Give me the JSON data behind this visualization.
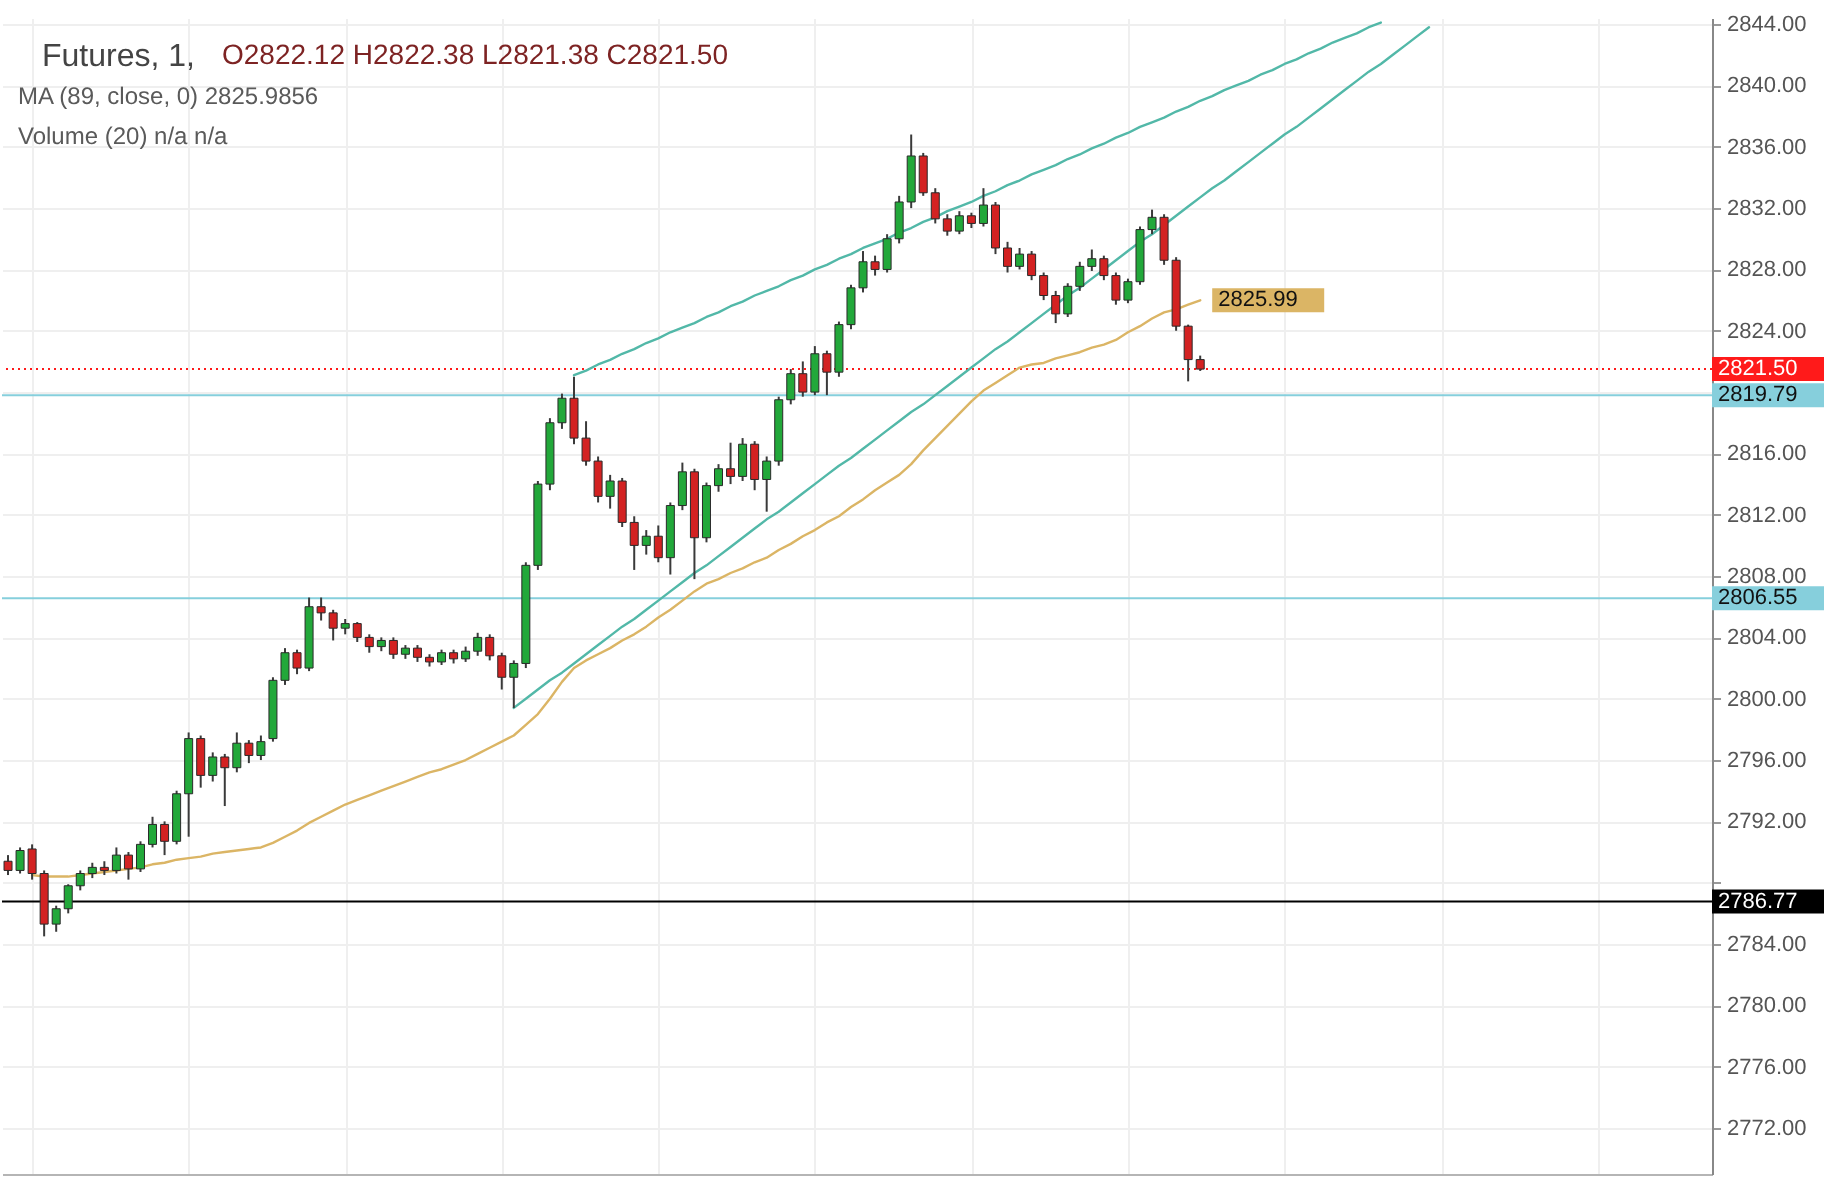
{
  "chart_data": {
    "type": "candlestick",
    "title": "Futures, 1,",
    "annotations": [
      "O2822.12 H2822.38 L2821.38 C2821.50",
      "MA (89, close, 0) 2825.9856",
      "Volume (20) n/a n/a"
    ],
    "categories": [
      null,
      null,
      null,
      null,
      null,
      null,
      null,
      null,
      null,
      null,
      null,
      null,
      null,
      null,
      null,
      null,
      null,
      null,
      null,
      null,
      null,
      null,
      null,
      null,
      null,
      null,
      null,
      null,
      null,
      null,
      null,
      null,
      null,
      null,
      null,
      null,
      null,
      null,
      null,
      null,
      null,
      null,
      null,
      null,
      null,
      null,
      null,
      null,
      null,
      null,
      null,
      null,
      null,
      null,
      null,
      null,
      null,
      null,
      null,
      null,
      null,
      null,
      null,
      null,
      null,
      null,
      null,
      null,
      null,
      null,
      null,
      null,
      null,
      null,
      null,
      null,
      null,
      null,
      null,
      null,
      null,
      null,
      null,
      null,
      null,
      null,
      null,
      null,
      null,
      null,
      null,
      null,
      null,
      null,
      null,
      null,
      null,
      null,
      null,
      null,
      null,
      null,
      null,
      null,
      null,
      null,
      null,
      null,
      null,
      null,
      null,
      null,
      null,
      null,
      null,
      null,
      null,
      null,
      null,
      null,
      null,
      null,
      null,
      null,
      null,
      null,
      null,
      null,
      null,
      null,
      null,
      null,
      null,
      null,
      null,
      null,
      null,
      null,
      null,
      null,
      null,
      null
    ],
    "ylim": [
      2769,
      2844.4
    ],
    "yticks": [
      {
        "value": 2772,
        "label": "2772.00"
      },
      {
        "value": 2776,
        "label": "2776.00"
      },
      {
        "value": 2780,
        "label": "2780.00"
      },
      {
        "value": 2784,
        "label": "2784.00"
      },
      {
        "value": 2788,
        "label": null
      },
      {
        "value": 2792,
        "label": "2792.00"
      },
      {
        "value": 2796,
        "label": "2796.00"
      },
      {
        "value": 2800,
        "label": "2800.00"
      },
      {
        "value": 2804,
        "label": "2804.00"
      },
      {
        "value": 2808,
        "label": "2808.00"
      },
      {
        "value": 2812,
        "label": "2812.00"
      },
      {
        "value": 2816,
        "label": "2816.00"
      },
      {
        "value": 2820,
        "label": null
      },
      {
        "value": 2824,
        "label": "2824.00"
      },
      {
        "value": 2828,
        "label": "2828.00"
      },
      {
        "value": 2832,
        "label": "2832.00"
      },
      {
        "value": 2836,
        "label": "2836.00"
      },
      {
        "value": 2840,
        "label": "2840.00"
      },
      {
        "value": 2844,
        "label": "2844.00"
      }
    ],
    "tick_labels": "y",
    "grid": true,
    "ref_lines": [
      {
        "axis": "y",
        "value": 2821.5,
        "label": "2821.50",
        "color": "#ff1a1a",
        "line_style": "dotted"
      },
      {
        "axis": "y",
        "value": 2819.79,
        "label": "2819.79",
        "color": "#86cfdc"
      },
      {
        "axis": "y",
        "value": 2806.55,
        "label": "2806.55",
        "color": "#86cfdc"
      },
      {
        "axis": "y",
        "value": 2786.77,
        "label": "2786.77",
        "color": "#000000"
      }
    ],
    "ohlc": [
      [
        2789.4,
        2789.8,
        2788.5,
        2788.8
      ],
      [
        2788.8,
        2790.3,
        2788.6,
        2790.1
      ],
      [
        2790.2,
        2790.5,
        2788.2,
        2788.6
      ],
      [
        2788.6,
        2788.8,
        2784.5,
        2785.3
      ],
      [
        2785.3,
        2786.5,
        2784.8,
        2786.3
      ],
      [
        2786.3,
        2787.9,
        2786.0,
        2787.8
      ],
      [
        2787.8,
        2788.8,
        2787.5,
        2788.6
      ],
      [
        2788.6,
        2789.3,
        2788.3,
        2789.0
      ],
      [
        2789.0,
        2789.4,
        2788.5,
        2788.8
      ],
      [
        2788.8,
        2790.3,
        2788.6,
        2789.8
      ],
      [
        2789.8,
        2790.0,
        2788.2,
        2788.9
      ],
      [
        2788.9,
        2790.7,
        2788.7,
        2790.5
      ],
      [
        2790.5,
        2792.3,
        2790.3,
        2791.8
      ],
      [
        2791.8,
        2792.0,
        2789.8,
        2790.7
      ],
      [
        2790.7,
        2794.0,
        2790.5,
        2793.8
      ],
      [
        2793.8,
        2797.8,
        2791.0,
        2797.4
      ],
      [
        2797.4,
        2797.6,
        2794.2,
        2795.0
      ],
      [
        2795.0,
        2796.5,
        2794.6,
        2796.2
      ],
      [
        2796.2,
        2796.4,
        2793.0,
        2795.5
      ],
      [
        2795.5,
        2797.8,
        2795.2,
        2797.1
      ],
      [
        2797.1,
        2797.3,
        2795.8,
        2796.3
      ],
      [
        2796.3,
        2797.6,
        2796.0,
        2797.2
      ],
      [
        2797.4,
        2801.4,
        2797.2,
        2801.2
      ],
      [
        2801.2,
        2803.3,
        2800.9,
        2803.0
      ],
      [
        2803.0,
        2803.2,
        2801.6,
        2802.0
      ],
      [
        2802.0,
        2806.6,
        2801.8,
        2806.0
      ],
      [
        2806.0,
        2806.6,
        2805.1,
        2805.6
      ],
      [
        2805.6,
        2805.8,
        2803.8,
        2804.6
      ],
      [
        2804.6,
        2805.2,
        2804.2,
        2804.9
      ],
      [
        2804.9,
        2805.0,
        2803.7,
        2804.0
      ],
      [
        2804.0,
        2804.2,
        2803.0,
        2803.4
      ],
      [
        2803.4,
        2804.0,
        2803.1,
        2803.8
      ],
      [
        2803.8,
        2804.0,
        2802.6,
        2802.9
      ],
      [
        2802.9,
        2803.5,
        2802.6,
        2803.3
      ],
      [
        2803.3,
        2803.5,
        2802.4,
        2802.7
      ],
      [
        2802.7,
        2802.9,
        2802.1,
        2802.4
      ],
      [
        2802.4,
        2803.2,
        2802.2,
        2803.0
      ],
      [
        2803.0,
        2803.2,
        2802.3,
        2802.6
      ],
      [
        2802.6,
        2803.4,
        2802.4,
        2803.1
      ],
      [
        2803.1,
        2804.3,
        2802.8,
        2804.0
      ],
      [
        2804.0,
        2804.2,
        2802.5,
        2802.8
      ],
      [
        2802.8,
        2803.0,
        2800.6,
        2801.4
      ],
      [
        2801.4,
        2802.5,
        2799.4,
        2802.3
      ],
      [
        2802.3,
        2808.9,
        2802.0,
        2808.7
      ],
      [
        2808.7,
        2814.2,
        2808.4,
        2814.0
      ],
      [
        2814.0,
        2818.3,
        2813.6,
        2818.0
      ],
      [
        2818.0,
        2819.9,
        2817.6,
        2819.6
      ],
      [
        2819.6,
        2821.0,
        2816.6,
        2817.0
      ],
      [
        2817.0,
        2818.1,
        2815.2,
        2815.5
      ],
      [
        2815.5,
        2815.8,
        2812.8,
        2813.2
      ],
      [
        2813.2,
        2814.6,
        2812.4,
        2814.2
      ],
      [
        2814.2,
        2814.4,
        2811.2,
        2811.5
      ],
      [
        2811.5,
        2811.9,
        2808.4,
        2810.0
      ],
      [
        2810.0,
        2811.0,
        2809.4,
        2810.6
      ],
      [
        2810.6,
        2811.3,
        2808.9,
        2809.2
      ],
      [
        2809.2,
        2812.8,
        2808.1,
        2812.6
      ],
      [
        2812.6,
        2815.4,
        2812.3,
        2814.8
      ],
      [
        2814.8,
        2815.0,
        2807.8,
        2810.5
      ],
      [
        2810.5,
        2814.1,
        2810.2,
        2813.9
      ],
      [
        2813.9,
        2815.3,
        2813.5,
        2815.0
      ],
      [
        2815.0,
        2816.7,
        2814.0,
        2814.5
      ],
      [
        2814.5,
        2817.0,
        2814.2,
        2816.6
      ],
      [
        2816.6,
        2816.8,
        2813.6,
        2814.3
      ],
      [
        2814.3,
        2815.8,
        2812.2,
        2815.5
      ],
      [
        2815.5,
        2819.7,
        2815.2,
        2819.5
      ],
      [
        2819.5,
        2821.5,
        2819.2,
        2821.2
      ],
      [
        2821.2,
        2822.0,
        2819.7,
        2820.0
      ],
      [
        2820.0,
        2823.0,
        2819.8,
        2822.5
      ],
      [
        2822.5,
        2822.7,
        2819.8,
        2821.3
      ],
      [
        2821.3,
        2824.6,
        2821.0,
        2824.4
      ],
      [
        2824.4,
        2827.0,
        2824.1,
        2826.8
      ],
      [
        2826.8,
        2829.2,
        2826.5,
        2828.5
      ],
      [
        2828.5,
        2828.9,
        2827.6,
        2828.0
      ],
      [
        2828.0,
        2830.3,
        2827.8,
        2830.0
      ],
      [
        2830.0,
        2832.8,
        2829.7,
        2832.4
      ],
      [
        2832.4,
        2836.8,
        2832.0,
        2835.4
      ],
      [
        2835.4,
        2835.6,
        2832.8,
        2833.0
      ],
      [
        2833.0,
        2833.3,
        2831.0,
        2831.3
      ],
      [
        2831.3,
        2831.6,
        2830.2,
        2830.5
      ],
      [
        2830.5,
        2831.8,
        2830.3,
        2831.5
      ],
      [
        2831.5,
        2831.7,
        2830.7,
        2831.0
      ],
      [
        2831.0,
        2833.3,
        2830.8,
        2832.2
      ],
      [
        2832.2,
        2832.4,
        2829.0,
        2829.4
      ],
      [
        2829.4,
        2829.8,
        2827.8,
        2828.2
      ],
      [
        2828.2,
        2829.4,
        2828.0,
        2829.0
      ],
      [
        2829.0,
        2829.2,
        2827.3,
        2827.6
      ],
      [
        2827.6,
        2827.8,
        2826.0,
        2826.3
      ],
      [
        2826.3,
        2826.6,
        2824.5,
        2825.1
      ],
      [
        2825.1,
        2827.1,
        2824.9,
        2826.9
      ],
      [
        2826.9,
        2828.5,
        2826.6,
        2828.2
      ],
      [
        2828.2,
        2829.3,
        2827.9,
        2828.7
      ],
      [
        2828.7,
        2828.9,
        2827.3,
        2827.6
      ],
      [
        2827.6,
        2827.8,
        2825.7,
        2826.0
      ],
      [
        2826.0,
        2827.4,
        2825.8,
        2827.2
      ],
      [
        2827.2,
        2830.8,
        2827.0,
        2830.6
      ],
      [
        2830.6,
        2831.9,
        2830.3,
        2831.4
      ],
      [
        2831.4,
        2831.6,
        2828.3,
        2828.6
      ],
      [
        2828.6,
        2828.8,
        2824.0,
        2824.3
      ],
      [
        2824.3,
        2824.4,
        2820.7,
        2822.12
      ],
      [
        2822.12,
        2822.38,
        2821.38,
        2821.5
      ],
      null,
      null,
      null,
      null,
      null,
      null,
      null,
      null,
      null,
      null,
      null,
      null,
      null,
      null,
      null,
      null,
      null,
      null,
      null,
      null,
      null,
      null,
      null,
      null,
      null,
      null,
      null,
      null,
      null,
      null,
      null,
      null,
      null,
      null,
      null,
      null,
      null,
      null,
      null,
      null,
      null,
      null
    ],
    "colors": [
      "#d32222",
      "#22a83a",
      "#d32222",
      "#d32222",
      "#22a83a",
      "#22a83a",
      "#22a83a",
      "#22a83a",
      "#d32222",
      "#22a83a",
      "#d32222",
      "#22a83a",
      "#22a83a",
      "#d32222",
      "#22a83a",
      "#22a83a",
      "#d32222",
      "#22a83a",
      "#d32222",
      "#22a83a",
      "#d32222",
      "#22a83a",
      "#22a83a",
      "#22a83a",
      "#d32222",
      "#22a83a",
      "#d32222",
      "#d32222",
      "#22a83a",
      "#d32222",
      "#d32222",
      "#22a83a",
      "#d32222",
      "#22a83a",
      "#d32222",
      "#d32222",
      "#22a83a",
      "#d32222",
      "#22a83a",
      "#22a83a",
      "#d32222",
      "#d32222",
      "#22a83a",
      "#22a83a",
      "#22a83a",
      "#22a83a",
      "#22a83a",
      "#d32222",
      "#d32222",
      "#d32222",
      "#22a83a",
      "#d32222",
      "#d32222",
      "#22a83a",
      "#d32222",
      "#22a83a",
      "#22a83a",
      "#d32222",
      "#22a83a",
      "#22a83a",
      "#d32222",
      "#22a83a",
      "#d32222",
      "#22a83a",
      "#22a83a",
      "#22a83a",
      "#d32222",
      "#22a83a",
      "#d32222",
      "#22a83a",
      "#22a83a",
      "#22a83a",
      "#d32222",
      "#22a83a",
      "#22a83a",
      "#22a83a",
      "#d32222",
      "#d32222",
      "#d32222",
      "#22a83a",
      "#d32222",
      "#22a83a",
      "#d32222",
      "#d32222",
      "#22a83a",
      "#d32222",
      "#d32222",
      "#d32222",
      "#22a83a",
      "#22a83a",
      "#22a83a",
      "#d32222",
      "#d32222",
      "#22a83a",
      "#22a83a",
      "#22a83a",
      "#d32222",
      "#d32222",
      "#d32222",
      "#d32222",
      null,
      null,
      null,
      null,
      null,
      null,
      null,
      null,
      null,
      null,
      null,
      null,
      null,
      null,
      null,
      null,
      null,
      null,
      null,
      null,
      null,
      null,
      null,
      null,
      null,
      null,
      null,
      null,
      null,
      null,
      null,
      null,
      null,
      null,
      null,
      null,
      null,
      null,
      null,
      null,
      null,
      null
    ],
    "series": [
      {
        "type": "line",
        "color": "#dbb565",
        "values": [
          null,
          null,
          2788.5,
          2788.4,
          2788.4,
          2788.4,
          2788.5,
          2788.6,
          2788.7,
          2788.8,
          2788.9,
          2789.0,
          2789.2,
          2789.3,
          2789.5,
          2789.6,
          2789.7,
          2789.9,
          2790.0,
          2790.1,
          2790.2,
          2790.3,
          2790.6,
          2791.0,
          2791.4,
          2791.9,
          2792.3,
          2792.7,
          2793.1,
          2793.4,
          2793.7,
          2794.0,
          2794.3,
          2794.6,
          2794.9,
          2795.2,
          2795.4,
          2795.7,
          2796.0,
          2796.4,
          2796.8,
          2797.2,
          2797.6,
          2798.3,
          2799.0,
          2800.0,
          2801.1,
          2802.0,
          2802.5,
          2802.9,
          2803.3,
          2803.8,
          2804.2,
          2804.7,
          2805.3,
          2805.8,
          2806.4,
          2807.0,
          2807.5,
          2807.8,
          2808.2,
          2808.5,
          2808.9,
          2809.2,
          2809.7,
          2810.1,
          2810.6,
          2811.0,
          2811.5,
          2811.9,
          2812.5,
          2813.0,
          2813.6,
          2814.1,
          2814.6,
          2815.3,
          2816.2,
          2817.0,
          2817.8,
          2818.6,
          2819.4,
          2820.1,
          2820.6,
          2821.1,
          2821.6,
          2821.8,
          2821.9,
          2822.2,
          2822.4,
          2822.6,
          2822.9,
          2823.1,
          2823.4,
          2823.9,
          2824.3,
          2824.8,
          2825.2,
          2825.4,
          2825.7,
          2825.99,
          null,
          null,
          null,
          null,
          null,
          null,
          null,
          null,
          null,
          null,
          null,
          null,
          null,
          null,
          null,
          null,
          null,
          null,
          null,
          null,
          null,
          null,
          null,
          null,
          null,
          null,
          null,
          null,
          null,
          null,
          null,
          null,
          null,
          null,
          null,
          null,
          null,
          null,
          null,
          null,
          null,
          null
        ],
        "value_labels": [
          null,
          null,
          null,
          null,
          null,
          null,
          null,
          null,
          null,
          null,
          null,
          null,
          null,
          null,
          null,
          null,
          null,
          null,
          null,
          null,
          null,
          null,
          null,
          null,
          null,
          null,
          null,
          null,
          null,
          null,
          null,
          null,
          null,
          null,
          null,
          null,
          null,
          null,
          null,
          null,
          null,
          null,
          null,
          null,
          null,
          null,
          null,
          null,
          null,
          null,
          null,
          null,
          null,
          null,
          null,
          null,
          null,
          null,
          null,
          null,
          null,
          null,
          null,
          null,
          null,
          null,
          null,
          null,
          null,
          null,
          null,
          null,
          null,
          null,
          null,
          null,
          null,
          null,
          null,
          null,
          null,
          null,
          null,
          null,
          null,
          null,
          null,
          null,
          null,
          null,
          null,
          null,
          null,
          null,
          null,
          null,
          null,
          null,
          null,
          "2825.99",
          null,
          null,
          null,
          null,
          null,
          null,
          null,
          null,
          null,
          null,
          null,
          null,
          null,
          null,
          null,
          null,
          null,
          null,
          null,
          null,
          null,
          null,
          null,
          null,
          null,
          null,
          null,
          null,
          null,
          null,
          null,
          null,
          null,
          null,
          null,
          null,
          null,
          null,
          null,
          null,
          null,
          null
        ]
      },
      {
        "type": "line",
        "color": "#52b8a8",
        "values": [
          null,
          null,
          null,
          null,
          null,
          null,
          null,
          null,
          null,
          null,
          null,
          null,
          null,
          null,
          null,
          null,
          null,
          null,
          null,
          null,
          null,
          null,
          null,
          null,
          null,
          null,
          null,
          null,
          null,
          null,
          null,
          null,
          null,
          null,
          null,
          null,
          null,
          null,
          null,
          null,
          null,
          null,
          null,
          null,
          null,
          null,
          null,
          2821.1,
          2821.4,
          2821.8,
          2822.1,
          2822.5,
          2822.8,
          2823.2,
          2823.5,
          2823.9,
          2824.2,
          2824.5,
          2824.9,
          2825.2,
          2825.6,
          2825.9,
          2826.3,
          2826.6,
          2826.9,
          2827.3,
          2827.6,
          2828.0,
          2828.3,
          2828.7,
          2829.0,
          2829.4,
          2829.7,
          2830.0,
          2830.4,
          2830.7,
          2831.1,
          2831.4,
          2831.8,
          2832.1,
          2832.4,
          2832.8,
          2833.1,
          2833.5,
          2833.8,
          2834.2,
          2834.5,
          2834.8,
          2835.2,
          2835.5,
          2835.9,
          2836.2,
          2836.6,
          2836.9,
          2837.3,
          2837.6,
          2837.9,
          2838.3,
          2838.6,
          2839.0,
          2839.3,
          2839.7,
          2840.0,
          2840.3,
          2840.7,
          2841.0,
          2841.4,
          2841.7,
          2842.1,
          2842.4,
          2842.8,
          2843.1,
          2843.4,
          2843.8,
          2844.1,
          null,
          null,
          null,
          null,
          null,
          null,
          null,
          null,
          null,
          null,
          null,
          null,
          null,
          null,
          null,
          null,
          null,
          null,
          null,
          null,
          null,
          null,
          null,
          null,
          null,
          null,
          null
        ]
      },
      {
        "type": "line",
        "color": "#52b8a8",
        "values": [
          null,
          null,
          null,
          null,
          null,
          null,
          null,
          null,
          null,
          null,
          null,
          null,
          null,
          null,
          null,
          null,
          null,
          null,
          null,
          null,
          null,
          null,
          null,
          null,
          null,
          null,
          null,
          null,
          null,
          null,
          null,
          null,
          null,
          null,
          null,
          null,
          null,
          null,
          null,
          null,
          null,
          null,
          2799.4,
          2800.0,
          2800.6,
          2801.2,
          2801.7,
          2802.3,
          2802.9,
          2803.5,
          2804.1,
          2804.7,
          2805.2,
          2805.8,
          2806.4,
          2807.0,
          2807.6,
          2808.2,
          2808.7,
          2809.3,
          2809.9,
          2810.5,
          2811.1,
          2811.7,
          2812.2,
          2812.8,
          2813.4,
          2814.0,
          2814.6,
          2815.2,
          2815.7,
          2816.3,
          2816.9,
          2817.5,
          2818.1,
          2818.7,
          2819.2,
          2819.8,
          2820.4,
          2821.0,
          2821.6,
          2822.2,
          2822.8,
          2823.3,
          2823.9,
          2824.5,
          2825.1,
          2825.7,
          2826.3,
          2826.8,
          2827.4,
          2828.0,
          2828.6,
          2829.2,
          2829.8,
          2830.3,
          2830.9,
          2831.5,
          2832.1,
          2832.7,
          2833.3,
          2833.8,
          2834.4,
          2835.0,
          2835.6,
          2836.2,
          2836.8,
          2837.3,
          2837.9,
          2838.5,
          2839.1,
          2839.7,
          2840.3,
          2840.9,
          2841.4,
          2842.0,
          2842.6,
          2843.2,
          2843.8,
          null,
          null,
          null,
          null,
          null,
          null,
          null,
          null,
          null,
          null,
          null,
          null,
          null,
          null,
          null,
          null,
          null,
          null,
          null,
          null,
          null,
          null,
          null
        ]
      }
    ]
  }
}
